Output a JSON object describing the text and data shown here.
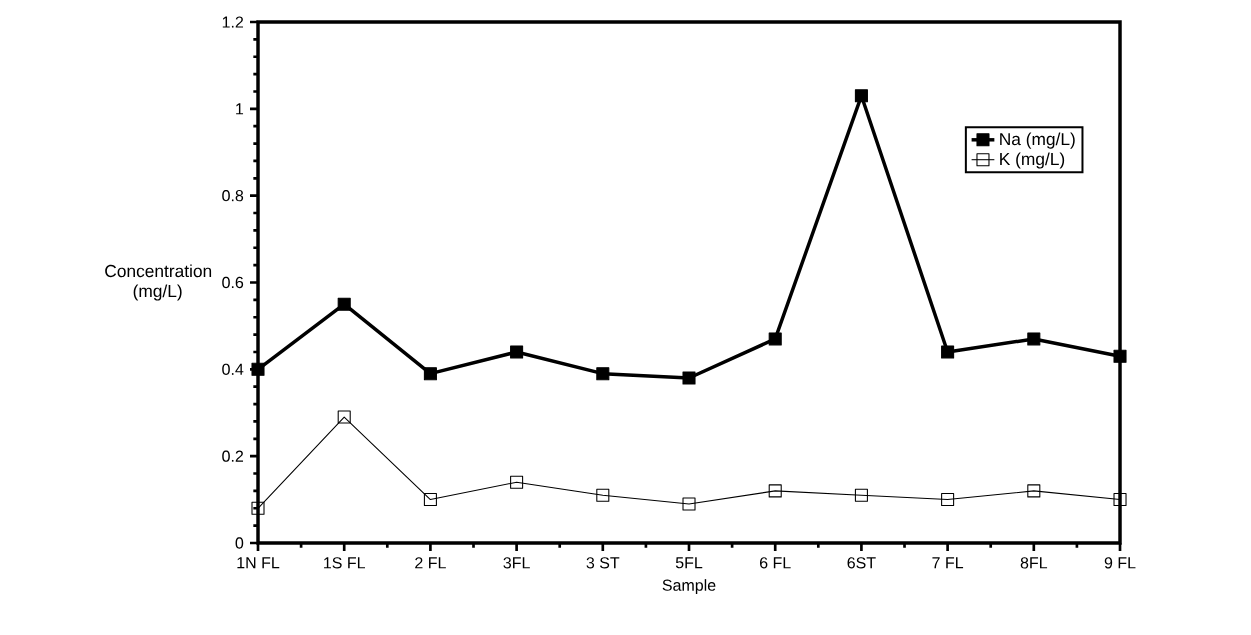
{
  "chart_data": {
    "type": "line",
    "xlabel": "Sample",
    "ylabel": "Concentration (mg/L)",
    "categories": [
      "1N FL",
      "1S FL",
      "2 FL",
      "3FL",
      "3 ST",
      "5FL",
      "6 FL",
      "6ST",
      "7 FL",
      "8FL",
      "9 FL"
    ],
    "series": [
      {
        "name": "Na (mg/L)",
        "color": "#000000",
        "values": [
          0.4,
          0.55,
          0.39,
          0.44,
          0.39,
          0.38,
          0.47,
          1.03,
          0.44,
          0.47,
          0.43
        ]
      },
      {
        "name": "K (mg/L)",
        "color": "#000000",
        "values": [
          0.08,
          0.29,
          0.1,
          0.14,
          0.11,
          0.09,
          0.12,
          0.11,
          0.1,
          0.12,
          0.1
        ]
      }
    ],
    "ylim": [
      0,
      1.2
    ],
    "yticks": [
      0,
      0.2,
      0.4,
      0.6,
      0.8,
      1,
      1.2
    ],
    "legend": "right",
    "marker": "square",
    "line_style": "solid",
    "grid": false
  }
}
